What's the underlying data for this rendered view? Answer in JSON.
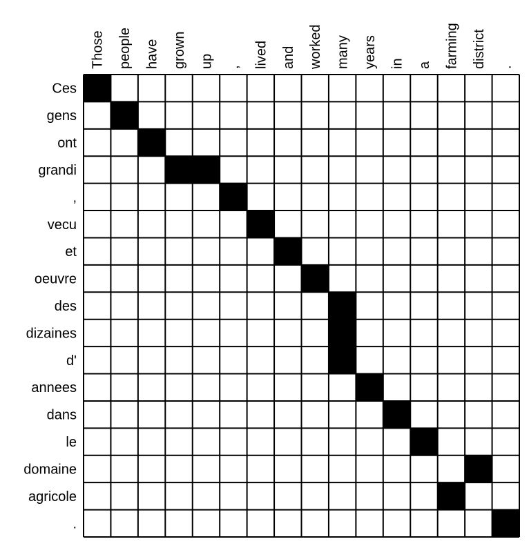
{
  "chart_data": {
    "type": "heatmap",
    "columns": [
      "Those",
      "people",
      "have",
      "grown",
      "up",
      ",",
      "lived",
      "and",
      "worked",
      "many",
      "years",
      "in",
      "a",
      "farming",
      "district",
      "."
    ],
    "rows": [
      "Ces",
      "gens",
      "ont",
      "grandi",
      ",",
      "vecu",
      "et",
      "oeuvre",
      "des",
      "dizaines",
      "d'",
      "annees",
      "dans",
      "le",
      "domaine",
      "agricole",
      "."
    ],
    "alignments": [
      [
        0,
        0
      ],
      [
        1,
        1
      ],
      [
        2,
        2
      ],
      [
        3,
        3
      ],
      [
        3,
        4
      ],
      [
        4,
        5
      ],
      [
        5,
        6
      ],
      [
        6,
        7
      ],
      [
        7,
        8
      ],
      [
        8,
        9
      ],
      [
        9,
        9
      ],
      [
        10,
        9
      ],
      [
        11,
        10
      ],
      [
        12,
        11
      ],
      [
        13,
        12
      ],
      [
        14,
        14
      ],
      [
        15,
        13
      ],
      [
        16,
        15
      ]
    ],
    "colors": {
      "filled": "#000000",
      "empty": "#ffffff",
      "grid": "#000000"
    }
  }
}
